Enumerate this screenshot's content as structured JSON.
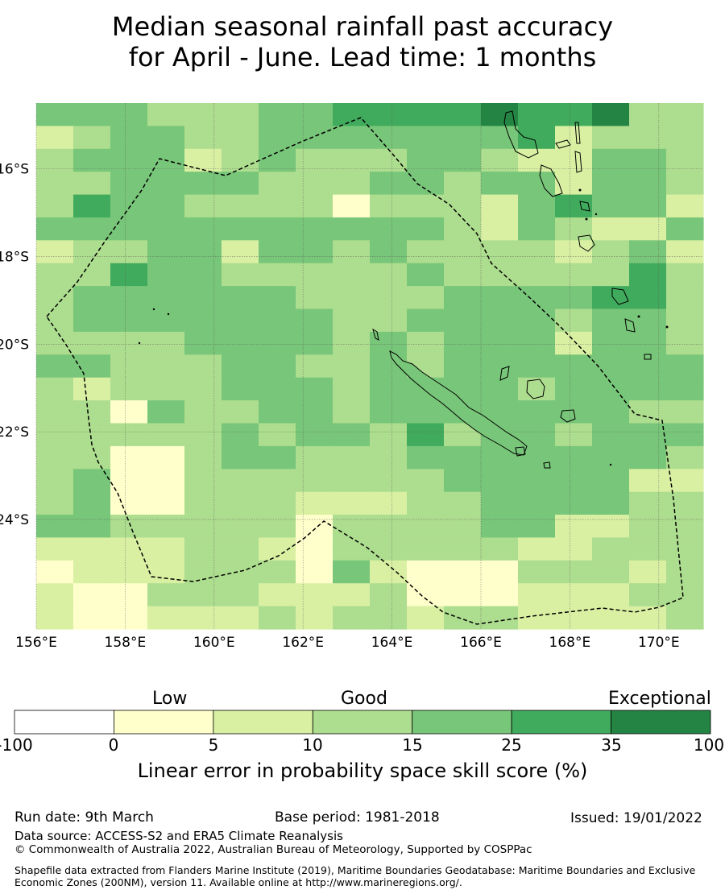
{
  "title": {
    "line1": "Median seasonal rainfall past accuracy",
    "line2": "for April - June. Lead time: 1 months"
  },
  "map": {
    "type": "gridded skill map",
    "lon_range": [
      156.0,
      171.0
    ],
    "lat_range": [
      -26.5,
      -14.5
    ],
    "x_ticks": [
      "156°E",
      "158°E",
      "160°E",
      "162°E",
      "164°E",
      "166°E",
      "168°E",
      "170°E"
    ],
    "y_ticks": [
      "16°S",
      "18°S",
      "20°S",
      "22°S",
      "24°S"
    ],
    "grid_rows": [
      "444333445555655633",
      "234433444444452333",
      "344423433344322443",
      "334444333443442443",
      "354433331333245442",
      "444444444443243224",
      "233442443433332342",
      "335443333343333353",
      "344444433334444553",
      "344444443344443443",
      "333344443434442443",
      "443334433434444444",
      "323334443444434444",
      "331433443444444433",
      "333334344353443444",
      "331134433344444443",
      "341133333334444422",
      "341133322233444433",
      "443333313333442233",
      "222233213333322333",
      "122233314211133323",
      "211333222311122233",
      "211222323323322223"
    ],
    "colors": {
      "0": "#ffffff",
      "1": "#ffffcc",
      "2": "#d9f0a3",
      "3": "#addd8e",
      "4": "#78c679",
      "5": "#41ab5d",
      "6": "#238443"
    }
  },
  "colorbar": {
    "category_labels": [
      "Low",
      "Good",
      "Exceptional"
    ],
    "ticks": [
      "-100",
      "0",
      "5",
      "10",
      "15",
      "25",
      "35",
      "100"
    ],
    "colors": [
      "#ffffff",
      "#ffffcc",
      "#d9f0a3",
      "#addd8e",
      "#78c679",
      "#41ab5d",
      "#238443"
    ],
    "title": "Linear error in probability space skill score (%)"
  },
  "footer": {
    "run_date": "Run date: 9th March",
    "base_period": "Base period: 1981-2018",
    "issued": "Issued: 19/01/2022",
    "data_source": "Data source: ACCESS-S2 and ERA5 Climate Reanalysis",
    "copyright": "© Commonwealth of Australia 2022, Australian Bureau of Meteorology, Supported by COSPPac",
    "shapefile": "Shapefile data extracted from Flanders Marine Institute (2019), Maritime Boundaries Geodatabase: Maritime Boundaries and Exclusive Economic Zones (200NM), version 11. Available online at http://www.marineregions.org/."
  }
}
